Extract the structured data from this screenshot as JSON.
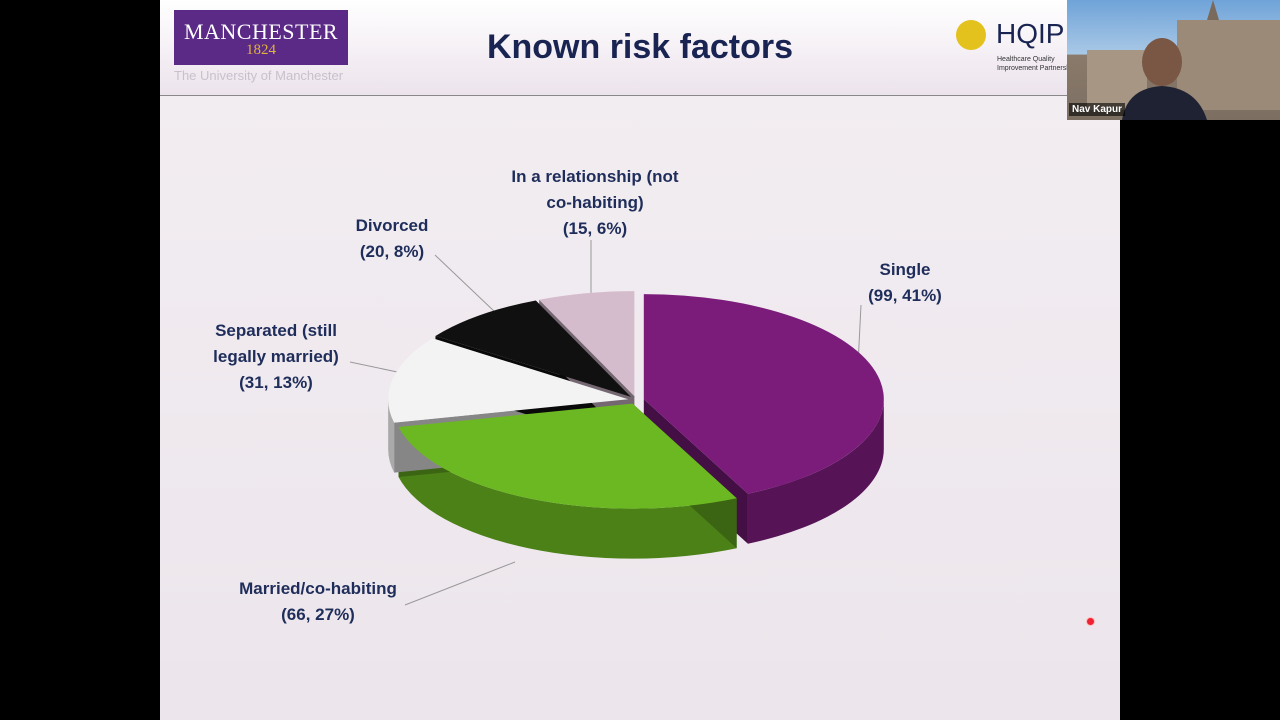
{
  "header": {
    "logo": {
      "name": "MANCHESTER",
      "year": "1824",
      "subtitle": "The University of Manchester"
    },
    "partner": {
      "name": "HQIP",
      "line1": "Healthcare Quality",
      "line2": "Improvement Partnership"
    }
  },
  "video": {
    "name": "Nav Kapur"
  },
  "chart_data": {
    "type": "pie",
    "title": "Known risk factors",
    "categories": [
      "Single",
      "Married/co-habiting",
      "Separated (still legally married)",
      "Divorced",
      "In a relationship (not co-habiting)"
    ],
    "values": [
      99,
      66,
      31,
      20,
      15
    ],
    "value_labels": [
      "(99, 41%)",
      "(66, 27%)",
      "(31, 13%)",
      "(20, 8%)",
      "(15, 6%)"
    ],
    "colors": [
      "#7b1c7b",
      "#6cb822",
      "#f3f3f3",
      "#101010",
      "#d5bccd"
    ]
  }
}
